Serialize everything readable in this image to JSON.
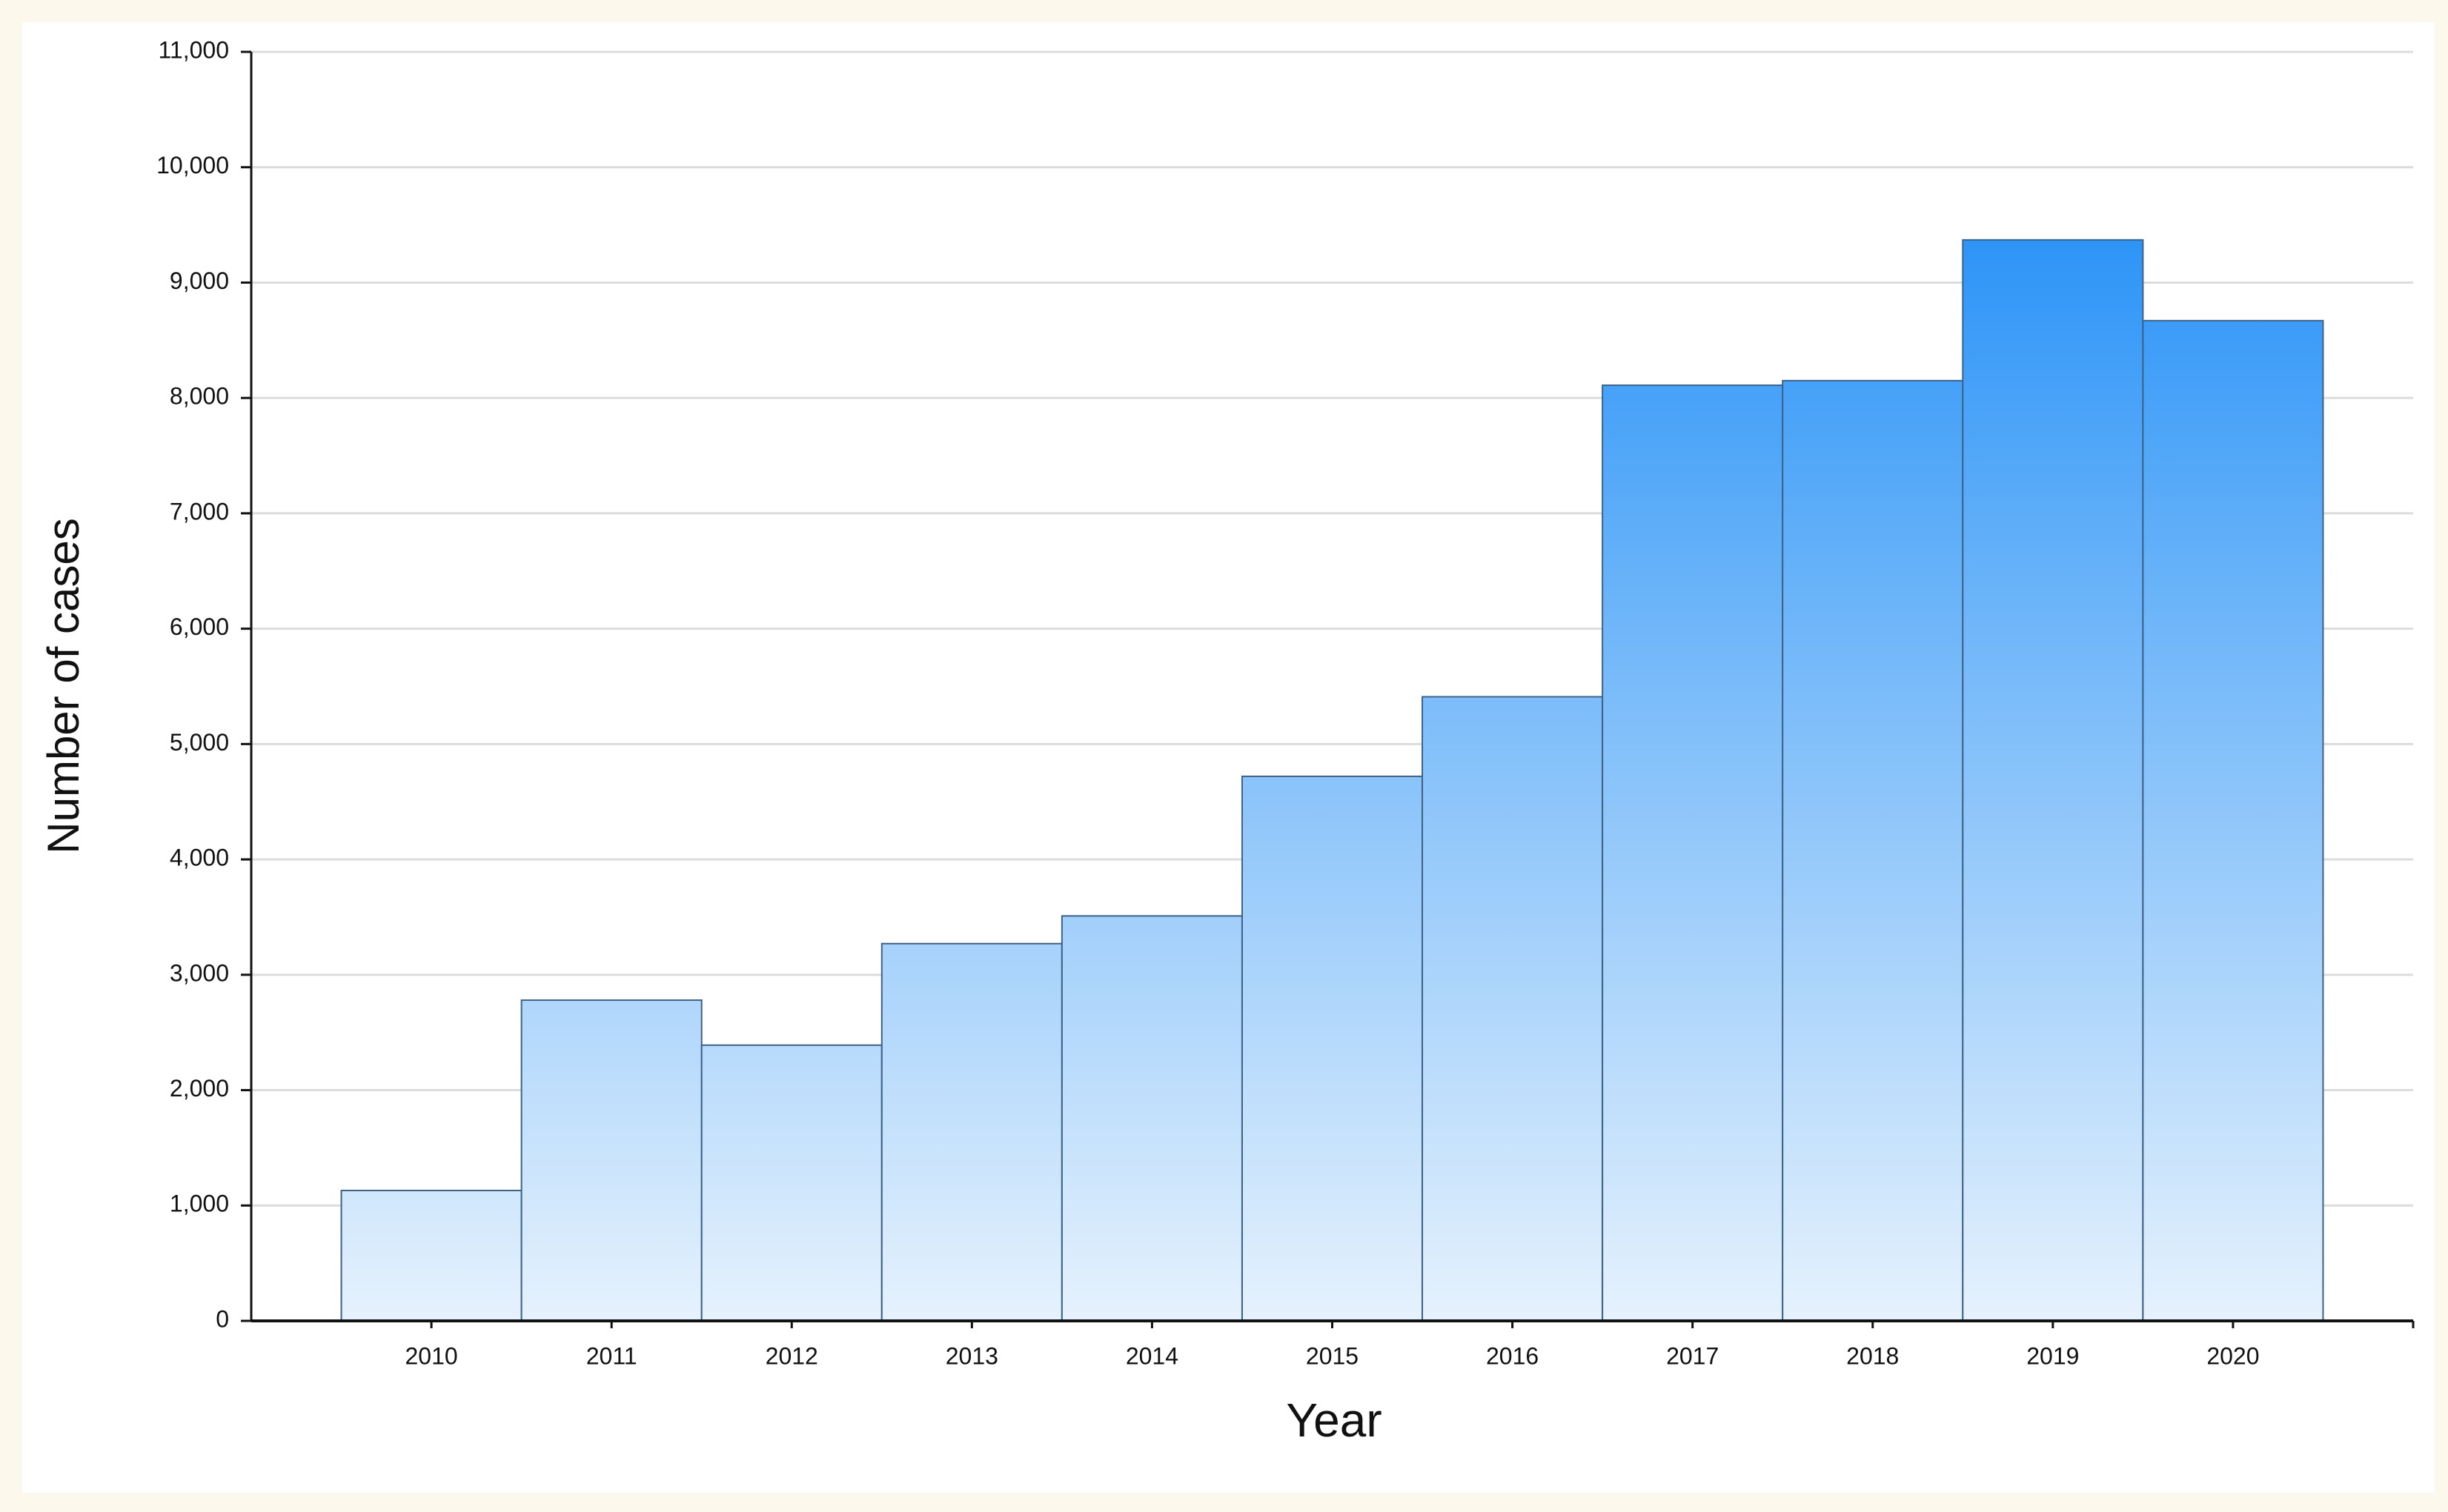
{
  "chart_data": {
    "type": "bar",
    "x_label": "Year",
    "y_label": "Number of cases",
    "categories": [
      "2010",
      "2011",
      "2012",
      "2013",
      "2014",
      "2015",
      "2016",
      "2017",
      "2018",
      "2019",
      "2020"
    ],
    "values": [
      1130,
      2780,
      2390,
      3270,
      3510,
      4720,
      5410,
      8110,
      8150,
      9370,
      8670
    ],
    "color": "#2a93f7",
    "ylim": [
      0,
      11000
    ],
    "yticks": [
      0,
      {
        "value": 1000,
        "label": "1,000"
      },
      {
        "value": 2000,
        "label": "2,000"
      },
      {
        "value": 3000,
        "label": "3,000"
      },
      {
        "value": 4000,
        "label": "4,000"
      },
      {
        "value": 5000,
        "label": "5,000"
      },
      {
        "value": 6000,
        "label": "6,000"
      },
      {
        "value": 7000,
        "label": "7,000"
      },
      {
        "value": 8000,
        "label": "8,000"
      },
      {
        "value": 9000,
        "label": "9,000"
      },
      {
        "value": 10000,
        "label": "10,000"
      },
      {
        "value": 11000,
        "label": "11,000"
      }
    ],
    "grid": true
  }
}
